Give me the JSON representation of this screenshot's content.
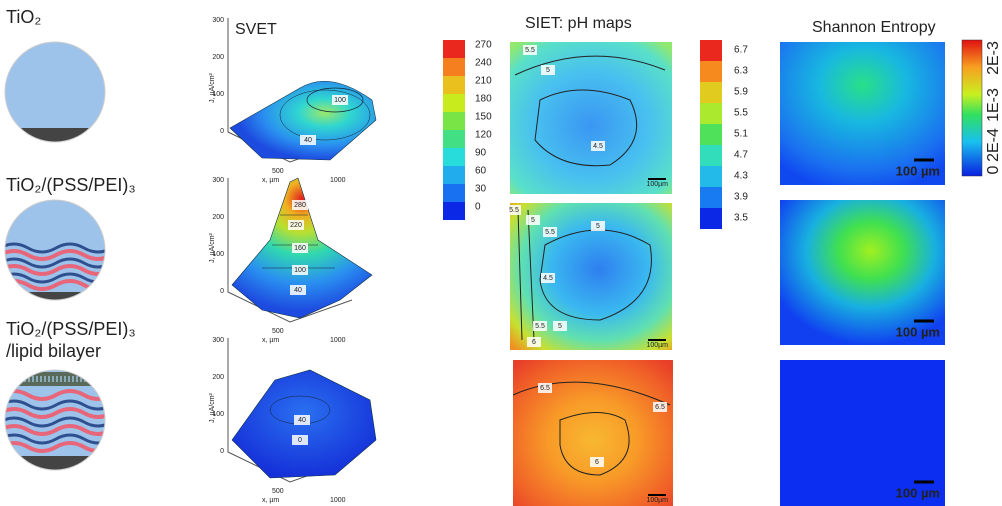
{
  "left_panel": {
    "rows": [
      {
        "lines": [
          "TiO₂"
        ]
      },
      {
        "lines": [
          "TiO₂/(PSS/PEI)₃"
        ]
      },
      {
        "lines": [
          "TiO₂/(PSS/PEI)₃",
          "/lipid bilayer"
        ]
      }
    ]
  },
  "svet": {
    "title": "SVET",
    "colorbar": [
      "270",
      "240",
      "210",
      "180",
      "150",
      "120",
      "90",
      "60",
      "30",
      "0"
    ],
    "plots": [
      {
        "y_label": "J, µA/cm²",
        "x_label": "x, µm",
        "yticks": [
          "300",
          "200",
          "100",
          "0"
        ],
        "xticks": [
          "500",
          "1000"
        ],
        "contours": [
          "100",
          "40"
        ]
      },
      {
        "y_label": "J, µA/cm²",
        "x_label": "x, µm",
        "yticks": [
          "300",
          "200",
          "100",
          "0"
        ],
        "xticks": [
          "500",
          "1000"
        ],
        "contours": [
          "280",
          "220",
          "160",
          "100",
          "40"
        ]
      },
      {
        "y_label": "J, µA/cm²",
        "x_label": "x, µm",
        "yticks": [
          "300",
          "200",
          "100",
          "0"
        ],
        "xticks": [
          "500",
          "1000"
        ],
        "contours": [
          "40",
          "0"
        ]
      }
    ]
  },
  "siet": {
    "title": "SIET: pH maps",
    "colorbar": [
      "6.7",
      "6.3",
      "5.9",
      "5.5",
      "5.1",
      "4.7",
      "4.3",
      "3.9",
      "3.5"
    ],
    "maps": [
      {
        "contours": [
          "5.5",
          "5",
          "4.5"
        ],
        "scale": "100µm"
      },
      {
        "contours": [
          "5.5",
          "5",
          "5.5",
          "5",
          "4.5",
          "5.5",
          "5",
          "6"
        ],
        "scale": "100µm"
      },
      {
        "contours": [
          "6.5",
          "6.5",
          "6"
        ],
        "scale": "100µm"
      }
    ]
  },
  "entropy": {
    "title": "Shannon Entropy",
    "colorbar": [
      "2E-3",
      "1E-3",
      "2E-4",
      "0"
    ],
    "scale_bars": [
      "100 µm",
      "100 µm",
      "100 µm"
    ]
  }
}
